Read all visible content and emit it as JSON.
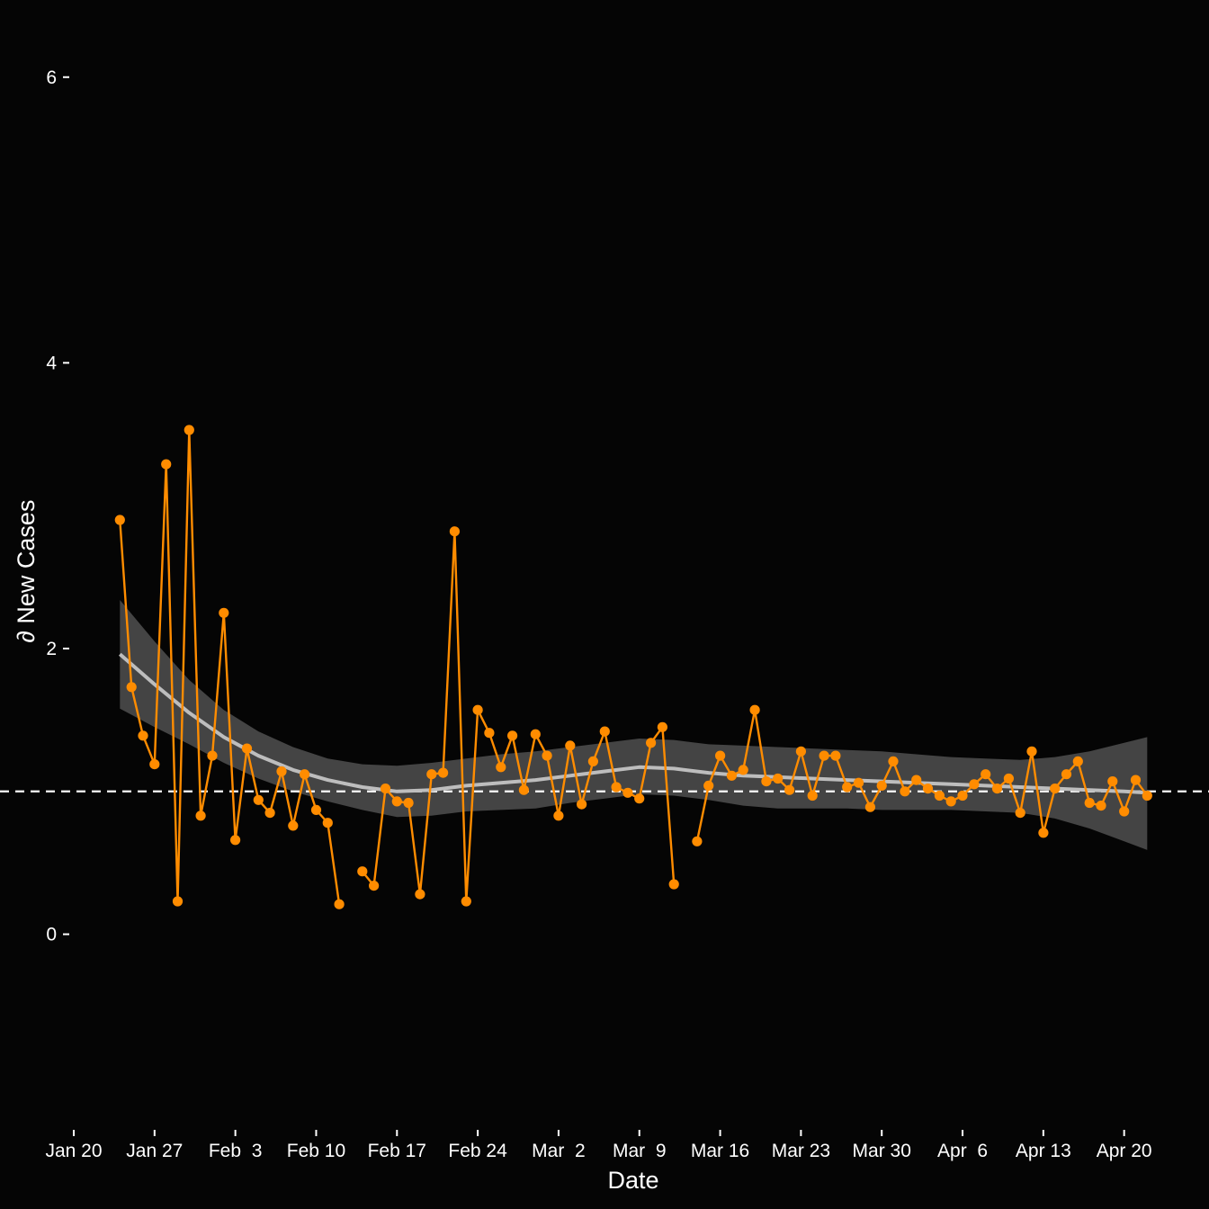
{
  "chart_data": {
    "type": "line",
    "xlabel": "Date",
    "ylabel": "∂ New Cases",
    "ylim": [
      -1.3,
      6.2
    ],
    "xlim": [
      "2020-01-20",
      "2020-04-24"
    ],
    "y_ticks": [
      "0",
      "2",
      "4",
      "6"
    ],
    "x_ticks": [
      {
        "date": "2020-01-20",
        "label": "Jan 20"
      },
      {
        "date": "2020-01-27",
        "label": "Jan 27"
      },
      {
        "date": "2020-02-03",
        "label": "Feb  3"
      },
      {
        "date": "2020-02-10",
        "label": "Feb 10"
      },
      {
        "date": "2020-02-17",
        "label": "Feb 17"
      },
      {
        "date": "2020-02-24",
        "label": "Feb 24"
      },
      {
        "date": "2020-03-02",
        "label": "Mar  2"
      },
      {
        "date": "2020-03-09",
        "label": "Mar  9"
      },
      {
        "date": "2020-03-16",
        "label": "Mar 16"
      },
      {
        "date": "2020-03-23",
        "label": "Mar 23"
      },
      {
        "date": "2020-03-30",
        "label": "Mar 30"
      },
      {
        "date": "2020-04-06",
        "label": "Apr  6"
      },
      {
        "date": "2020-04-13",
        "label": "Apr 13"
      },
      {
        "date": "2020-04-20",
        "label": "Apr 20"
      }
    ],
    "reference_line": {
      "y": 1.0,
      "style": "dashed",
      "color": "#ffffff"
    },
    "series_color": "#ff8c00",
    "smooth_color": "#bdbdbd",
    "band_color": "#444444",
    "background": "#050505",
    "grid": false,
    "observed": {
      "x": [
        "2020-01-24",
        "2020-01-25",
        "2020-01-26",
        "2020-01-27",
        "2020-01-28",
        "2020-01-29",
        "2020-01-30",
        "2020-01-31",
        "2020-02-01",
        "2020-02-02",
        "2020-02-03",
        "2020-02-04",
        "2020-02-05",
        "2020-02-06",
        "2020-02-07",
        "2020-02-08",
        "2020-02-09",
        "2020-02-10",
        "2020-02-11",
        "2020-02-12",
        "2020-02-13",
        "2020-02-14",
        "2020-02-15",
        "2020-02-16",
        "2020-02-17",
        "2020-02-18",
        "2020-02-19",
        "2020-02-20",
        "2020-02-21",
        "2020-02-22",
        "2020-02-23",
        "2020-02-24",
        "2020-02-25",
        "2020-02-26",
        "2020-02-27",
        "2020-02-28",
        "2020-02-29",
        "2020-03-01",
        "2020-03-02",
        "2020-03-03",
        "2020-03-04",
        "2020-03-05",
        "2020-03-06",
        "2020-03-07",
        "2020-03-08",
        "2020-03-09",
        "2020-03-10",
        "2020-03-11",
        "2020-03-12",
        "2020-03-13",
        "2020-03-14",
        "2020-03-15",
        "2020-03-16",
        "2020-03-17",
        "2020-03-18",
        "2020-03-19",
        "2020-03-20",
        "2020-03-21",
        "2020-03-22",
        "2020-03-23",
        "2020-03-24",
        "2020-03-25",
        "2020-03-26",
        "2020-03-27",
        "2020-03-28",
        "2020-03-29",
        "2020-03-30",
        "2020-03-31",
        "2020-04-01",
        "2020-04-02",
        "2020-04-03",
        "2020-04-04",
        "2020-04-05",
        "2020-04-06",
        "2020-04-07",
        "2020-04-08",
        "2020-04-09",
        "2020-04-10",
        "2020-04-11",
        "2020-04-12",
        "2020-04-13",
        "2020-04-14",
        "2020-04-15",
        "2020-04-16",
        "2020-04-17",
        "2020-04-18",
        "2020-04-19",
        "2020-04-20",
        "2020-04-21",
        "2020-04-22"
      ],
      "y": [
        2.9,
        1.73,
        1.39,
        1.19,
        3.29,
        0.23,
        3.53,
        0.83,
        1.25,
        2.25,
        0.66,
        1.3,
        0.94,
        0.85,
        1.14,
        0.76,
        1.12,
        0.87,
        0.78,
        0.21,
        null,
        0.44,
        0.34,
        1.02,
        0.93,
        0.92,
        0.28,
        1.12,
        1.13,
        2.82,
        0.23,
        1.57,
        1.41,
        1.17,
        1.39,
        1.01,
        1.4,
        1.25,
        0.83,
        1.32,
        0.91,
        1.21,
        1.42,
        1.03,
        0.99,
        0.95,
        1.34,
        1.45,
        0.35,
        null,
        0.65,
        1.04,
        1.25,
        1.11,
        1.15,
        1.57,
        1.07,
        1.09,
        1.01,
        1.28,
        0.97,
        1.25,
        1.25,
        1.03,
        1.06,
        0.89,
        1.04,
        1.21,
        1.0,
        1.08,
        1.02,
        0.97,
        0.93,
        0.97,
        1.05,
        1.12,
        1.02,
        1.09,
        0.85,
        1.28,
        0.71,
        1.02,
        1.12,
        1.21,
        0.92,
        0.9,
        1.07,
        0.86,
        1.08,
        0.97
      ]
    },
    "smooth": {
      "x": [
        "2020-01-24",
        "2020-01-27",
        "2020-01-30",
        "2020-02-02",
        "2020-02-05",
        "2020-02-08",
        "2020-02-11",
        "2020-02-14",
        "2020-02-17",
        "2020-02-20",
        "2020-02-23",
        "2020-02-26",
        "2020-02-29",
        "2020-03-03",
        "2020-03-06",
        "2020-03-09",
        "2020-03-12",
        "2020-03-15",
        "2020-03-18",
        "2020-03-21",
        "2020-03-24",
        "2020-03-27",
        "2020-03-30",
        "2020-04-02",
        "2020-04-05",
        "2020-04-08",
        "2020-04-11",
        "2020-04-14",
        "2020-04-17",
        "2020-04-20",
        "2020-04-22"
      ],
      "y": [
        1.96,
        1.75,
        1.55,
        1.38,
        1.25,
        1.15,
        1.08,
        1.03,
        1.0,
        1.01,
        1.04,
        1.06,
        1.08,
        1.11,
        1.14,
        1.17,
        1.16,
        1.13,
        1.11,
        1.1,
        1.09,
        1.08,
        1.07,
        1.06,
        1.05,
        1.04,
        1.03,
        1.02,
        1.01,
        1.0,
        0.99
      ],
      "lower": [
        1.58,
        1.45,
        1.33,
        1.2,
        1.09,
        1.0,
        0.93,
        0.87,
        0.82,
        0.83,
        0.86,
        0.87,
        0.88,
        0.92,
        0.95,
        0.98,
        0.97,
        0.94,
        0.9,
        0.88,
        0.88,
        0.88,
        0.87,
        0.87,
        0.87,
        0.86,
        0.85,
        0.81,
        0.74,
        0.65,
        0.59
      ],
      "upper": [
        2.34,
        2.05,
        1.78,
        1.57,
        1.42,
        1.31,
        1.23,
        1.19,
        1.18,
        1.2,
        1.23,
        1.26,
        1.28,
        1.31,
        1.34,
        1.37,
        1.36,
        1.33,
        1.32,
        1.31,
        1.3,
        1.29,
        1.28,
        1.26,
        1.24,
        1.23,
        1.22,
        1.24,
        1.28,
        1.34,
        1.38
      ]
    }
  }
}
